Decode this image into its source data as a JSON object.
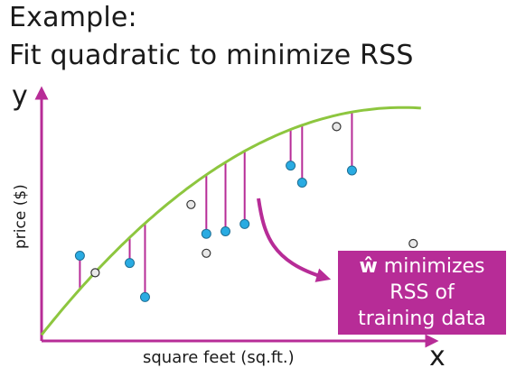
{
  "title": {
    "line1": "Example:",
    "line2": "Fit quadratic to minimize RSS"
  },
  "axes": {
    "x_label": "x",
    "y_label": "y",
    "x_caption": "square feet (sq.ft.)",
    "y_caption": "price ($)"
  },
  "callout": {
    "symbol": "ŵ",
    "line1_rest": " minimizes",
    "line2": "RSS of",
    "line3": "training data"
  },
  "colors": {
    "axis": "#b72c97",
    "curve": "#8dc63f",
    "residual": "#b72c97",
    "training_point": "#29abe2",
    "test_point": "#e8e8e8",
    "callout_bg": "#b72c97",
    "callout_text": "#ffffff"
  },
  "chart_data": {
    "type": "scatter",
    "x_range": [
      0,
      100
    ],
    "y_range": [
      0,
      100
    ],
    "curve": {
      "kind": "quadratic",
      "coefficients": [
        2.5,
        1.98,
        -0.0105
      ]
    },
    "training_points": [
      {
        "x": 10,
        "y": 35
      },
      {
        "x": 23,
        "y": 32
      },
      {
        "x": 27,
        "y": 18
      },
      {
        "x": 43,
        "y": 44
      },
      {
        "x": 48,
        "y": 45
      },
      {
        "x": 53,
        "y": 48
      },
      {
        "x": 65,
        "y": 72
      },
      {
        "x": 68,
        "y": 65
      },
      {
        "x": 81,
        "y": 70
      }
    ],
    "test_points": [
      {
        "x": 14,
        "y": 28
      },
      {
        "x": 39,
        "y": 56
      },
      {
        "x": 43,
        "y": 36
      },
      {
        "x": 77,
        "y": 88
      },
      {
        "x": 97,
        "y": 40
      }
    ]
  }
}
